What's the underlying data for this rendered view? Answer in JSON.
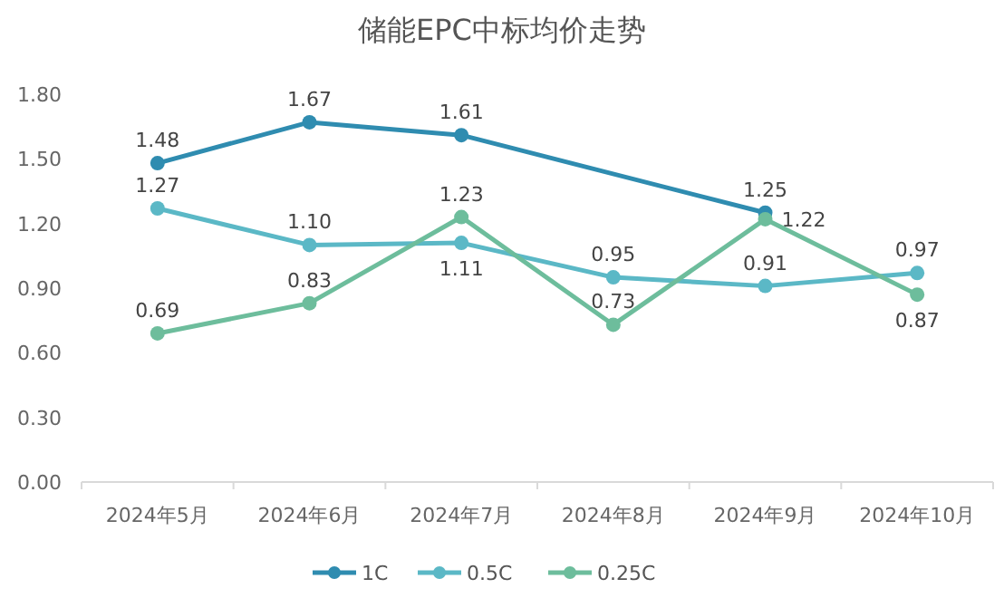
{
  "chart_data": {
    "type": "line",
    "title": "储能EPC中标均价走势",
    "categories": [
      "2024年5月",
      "2024年6月",
      "2024年7月",
      "2024年8月",
      "2024年9月",
      "2024年10月"
    ],
    "series": [
      {
        "name": "1C",
        "color": "#2f8cb0",
        "values": [
          1.48,
          1.67,
          1.61,
          null,
          1.25,
          null
        ],
        "value_labels": [
          "1.48",
          "1.67",
          "1.61",
          null,
          "1.25",
          null
        ]
      },
      {
        "name": "0.5C",
        "color": "#5bb8c6",
        "values": [
          1.27,
          1.1,
          1.11,
          0.95,
          0.91,
          0.97
        ],
        "value_labels": [
          "1.27",
          "1.10",
          "1.11",
          "0.95",
          "0.91",
          "0.97"
        ]
      },
      {
        "name": "0.25C",
        "color": "#6dbd9c",
        "values": [
          0.69,
          0.83,
          1.23,
          0.73,
          1.22,
          0.87
        ],
        "value_labels": [
          "0.69",
          "0.83",
          "1.23",
          "0.73",
          "1.22",
          "0.87"
        ]
      }
    ],
    "ylim": [
      0,
      1.8
    ],
    "yticks": [
      {
        "value": 0,
        "label": "0.00"
      },
      {
        "value": 0.3,
        "label": "0.30"
      },
      {
        "value": 0.6,
        "label": "0.60"
      },
      {
        "value": 0.9,
        "label": "0.90"
      },
      {
        "value": 1.2,
        "label": "1.20"
      },
      {
        "value": 1.5,
        "label": "1.50"
      },
      {
        "value": 1.8,
        "label": "1.80"
      }
    ],
    "grid": false,
    "legend": "bottom",
    "marker": "circle",
    "line_style": "solid"
  }
}
